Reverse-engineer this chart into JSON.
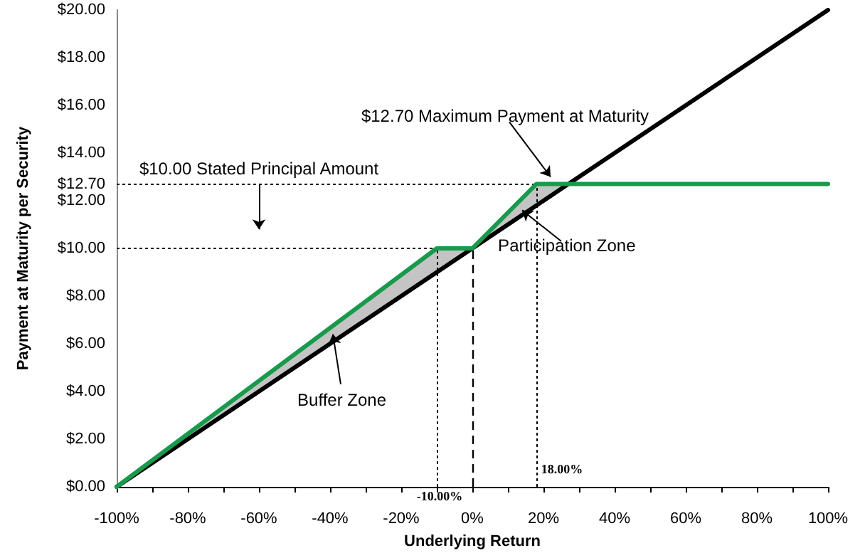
{
  "chart_data": {
    "type": "line",
    "xlabel": "Underlying Return",
    "ylabel": "Payment at Maturity per Security",
    "x": [
      -100,
      -10,
      0,
      18,
      27,
      100
    ],
    "series": [
      {
        "color": "#179a4c",
        "values": [
          0,
          10,
          10,
          12.7,
          12.7,
          12.7
        ],
        "lower": [
          0,
          9,
          10,
          11.8,
          12.7,
          null
        ],
        "upper": [
          0,
          10,
          10,
          12.7,
          12.7,
          null
        ]
      },
      {
        "color": "#000000",
        "values": [
          0,
          9,
          10,
          11.8,
          12.7,
          20
        ]
      }
    ],
    "xlim": [
      -100,
      100
    ],
    "xticks": [
      {
        "value": -100,
        "label": "-100%"
      },
      {
        "value": -90,
        "label": null
      },
      {
        "value": -80,
        "label": "-80%"
      },
      {
        "value": -70,
        "label": null
      },
      {
        "value": -60,
        "label": "-60%"
      },
      {
        "value": -50,
        "label": null
      },
      {
        "value": -40,
        "label": "-40%"
      },
      {
        "value": -30,
        "label": null
      },
      {
        "value": -20,
        "label": "-20%"
      },
      {
        "value": -10,
        "label": null
      },
      {
        "value": 0,
        "label": "0%"
      },
      {
        "value": 10,
        "label": null
      },
      {
        "value": 20,
        "label": "20%"
      },
      {
        "value": 30,
        "label": null
      },
      {
        "value": 40,
        "label": "40%"
      },
      {
        "value": 50,
        "label": null
      },
      {
        "value": 60,
        "label": "60%"
      },
      {
        "value": 70,
        "label": null
      },
      {
        "value": 80,
        "label": "80%"
      },
      {
        "value": 90,
        "label": null
      },
      {
        "value": 100,
        "label": "100%"
      }
    ],
    "ylim": [
      0,
      20
    ],
    "yticks": [
      {
        "value": 0,
        "label": "$0.00"
      },
      {
        "value": 2,
        "label": "$2.00"
      },
      {
        "value": 4,
        "label": "$4.00"
      },
      {
        "value": 6,
        "label": "$6.00"
      },
      {
        "value": 8,
        "label": "$8.00"
      },
      {
        "value": 10,
        "label": "$10.00"
      },
      {
        "value": 12,
        "label": "$12.00"
      },
      {
        "value": 12.7,
        "label": "$12.70"
      },
      {
        "value": 14,
        "label": "$14.00"
      },
      {
        "value": 16,
        "label": "$16.00"
      },
      {
        "value": 18,
        "label": "$18.00"
      },
      {
        "value": 20,
        "label": "$20.00"
      }
    ],
    "ref_lines": [
      {
        "axis": "y",
        "value": 10,
        "line_style": "dotted"
      },
      {
        "axis": "y",
        "value": 12.7,
        "line_style": "dotted"
      },
      {
        "axis": "x",
        "value": -10,
        "label": "-10.00%",
        "line_style": "dotted"
      },
      {
        "axis": "x",
        "value": 0,
        "line_style": "dashed"
      },
      {
        "axis": "x",
        "value": 18,
        "label": "18.00%",
        "line_style": "dotted"
      }
    ],
    "annotations": [
      "$12.70 Maximum Payment at Maturity",
      "$10.00 Stated Principal Amount",
      {
        "text": "Participation Zone",
        "x": 14,
        "y": 11.6
      },
      {
        "text": "Buffer Zone",
        "x": -39.2,
        "y": 6.4
      }
    ],
    "grid": false,
    "marker": "none",
    "line_style": "solid"
  }
}
